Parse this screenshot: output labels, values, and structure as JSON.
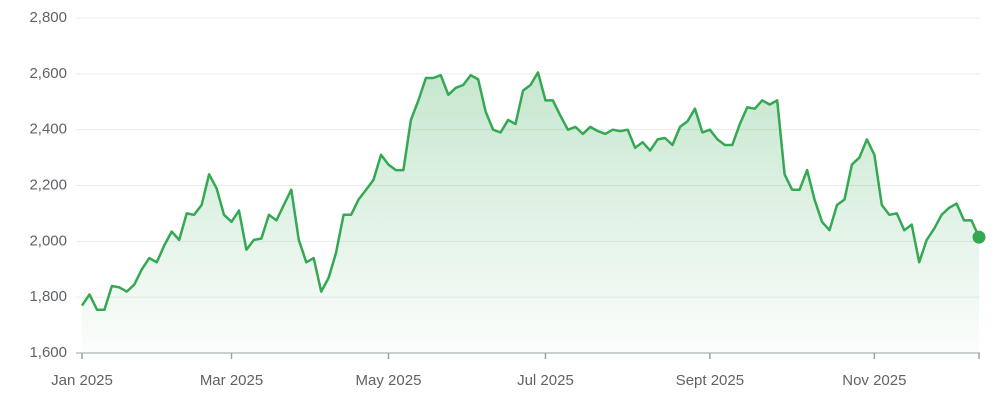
{
  "chart_data": {
    "type": "line",
    "categories": [
      "Jan 2025",
      null,
      null,
      null,
      null,
      null,
      null,
      null,
      null,
      null,
      null,
      null,
      null,
      null,
      null,
      null,
      null,
      null,
      null,
      null,
      "Mar 2025",
      null,
      null,
      null,
      null,
      null,
      null,
      null,
      null,
      null,
      null,
      null,
      null,
      null,
      null,
      null,
      null,
      null,
      null,
      null,
      null,
      "May 2025",
      null,
      null,
      null,
      null,
      null,
      null,
      null,
      null,
      null,
      null,
      null,
      null,
      null,
      null,
      null,
      null,
      null,
      null,
      null,
      null,
      "Jul 2025",
      null,
      null,
      null,
      null,
      null,
      null,
      null,
      null,
      null,
      null,
      null,
      null,
      null,
      null,
      null,
      null,
      null,
      null,
      null,
      null,
      null,
      "Sept 2025",
      null,
      null,
      null,
      null,
      null,
      null,
      null,
      null,
      null,
      null,
      null,
      null,
      null,
      null,
      null,
      null,
      null,
      null,
      null,
      null,
      null,
      "Nov 2025",
      null,
      null,
      null,
      null,
      null,
      null,
      null,
      null,
      null,
      null,
      null,
      null,
      null,
      null
    ],
    "values": [
      1770,
      1810,
      1755,
      1755,
      1840,
      1835,
      1820,
      1845,
      1900,
      1940,
      1925,
      1985,
      2035,
      2005,
      2100,
      2095,
      2130,
      2240,
      2190,
      2095,
      2070,
      2110,
      1970,
      2005,
      2010,
      2095,
      2075,
      2130,
      2185,
      2005,
      1925,
      1940,
      1820,
      1870,
      1960,
      2095,
      2095,
      2150,
      2185,
      2220,
      2310,
      2275,
      2255,
      2255,
      2435,
      2505,
      2585,
      2585,
      2595,
      2525,
      2550,
      2560,
      2595,
      2580,
      2465,
      2400,
      2390,
      2435,
      2420,
      2540,
      2560,
      2605,
      2505,
      2505,
      2450,
      2400,
      2410,
      2385,
      2410,
      2395,
      2385,
      2400,
      2395,
      2400,
      2335,
      2355,
      2325,
      2365,
      2370,
      2345,
      2410,
      2430,
      2475,
      2390,
      2400,
      2365,
      2345,
      2345,
      2420,
      2480,
      2475,
      2505,
      2490,
      2505,
      2240,
      2185,
      2185,
      2255,
      2150,
      2070,
      2040,
      2130,
      2150,
      2275,
      2300,
      2365,
      2310,
      2130,
      2095,
      2100,
      2040,
      2060,
      1925,
      2005,
      2045,
      2095,
      2120,
      2135,
      2075,
      2075,
      2015
    ],
    "color": "#34a853",
    "ylim": [
      1600,
      2800
    ],
    "yticks": [
      {
        "value": 1600,
        "label": "1,600"
      },
      {
        "value": 1800,
        "label": "1,800"
      },
      {
        "value": 2000,
        "label": "2,000"
      },
      {
        "value": 2200,
        "label": "2,200"
      },
      {
        "value": 2400,
        "label": "2,400"
      },
      {
        "value": 2600,
        "label": "2,600"
      },
      {
        "value": 2800,
        "label": "2,800"
      }
    ],
    "grid": true
  }
}
